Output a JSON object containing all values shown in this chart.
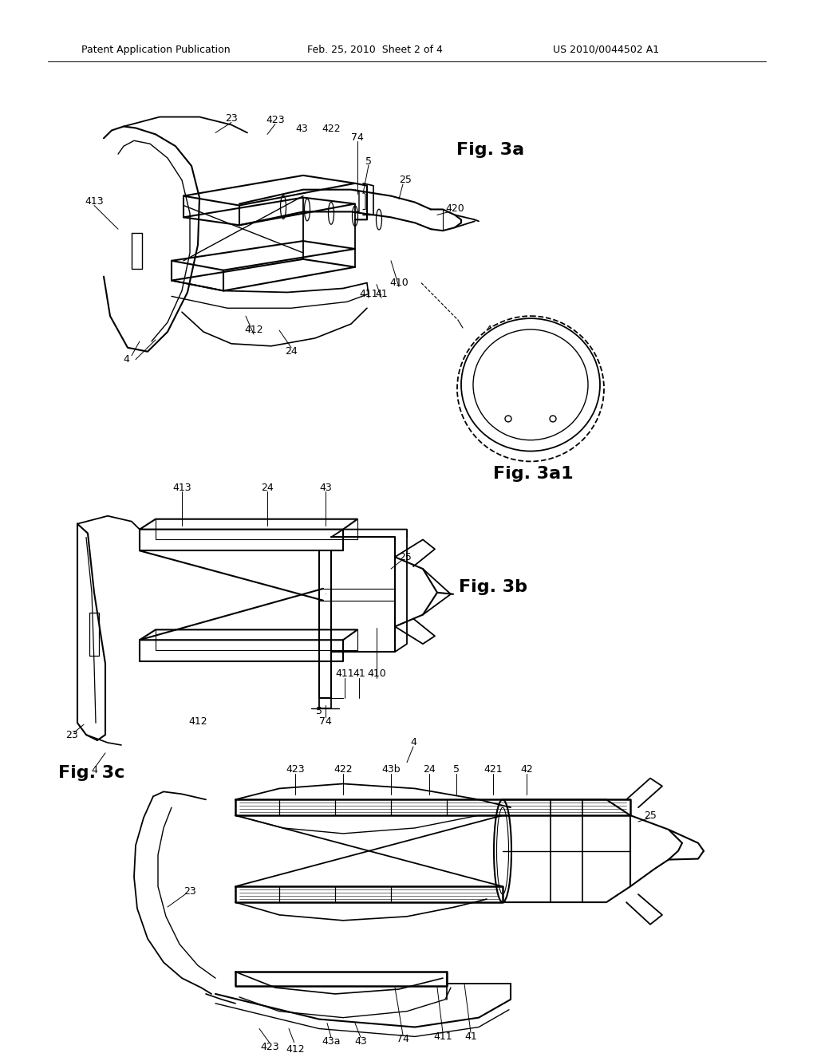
{
  "background_color": "#ffffff",
  "header_left": "Patent Application Publication",
  "header_center": "Feb. 25, 2010  Sheet 2 of 4",
  "header_right": "US 2010/0044502 A1",
  "fig3a_label": "Fig. 3a",
  "fig3a1_label": "Fig. 3a1",
  "fig3b_label": "Fig. 3b",
  "fig3c_label": "Fig. 3c",
  "header_fontsize": 9,
  "ref_fontsize": 9,
  "figlabel_fontsize": 16
}
